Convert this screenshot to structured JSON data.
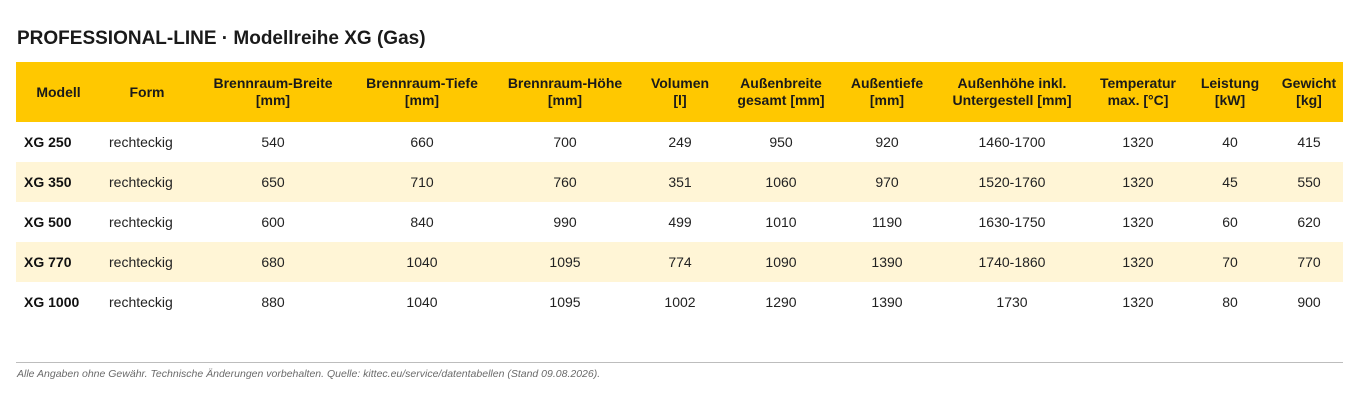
{
  "title": "PROFESSIONAL-LINE · Modellreihe XG (Gas)",
  "colors": {
    "header_bg": "#ffc800",
    "alt_row_bg": "#fff5d6",
    "rule": "#bdbdbd"
  },
  "table": {
    "headers": [
      {
        "line1": "Modell",
        "line2": ""
      },
      {
        "line1": "Form",
        "line2": ""
      },
      {
        "line1": "Brennraum-Breite",
        "line2": "[mm]"
      },
      {
        "line1": "Brennraum-Tiefe",
        "line2": "[mm]"
      },
      {
        "line1": "Brennraum-Höhe",
        "line2": "[mm]"
      },
      {
        "line1": "Volumen",
        "line2": "[l]"
      },
      {
        "line1": "Außenbreite",
        "line2": "gesamt [mm]"
      },
      {
        "line1": "Außentiefe",
        "line2": "[mm]"
      },
      {
        "line1": "Außenhöhe inkl.",
        "line2": "Untergestell [mm]"
      },
      {
        "line1": "Temperatur",
        "line2": "max. [°C]"
      },
      {
        "line1": "Leistung",
        "line2": "[kW]"
      },
      {
        "line1": "Gewicht",
        "line2": "[kg]"
      }
    ],
    "rows": [
      [
        "XG 250",
        "rechteckig",
        "540",
        "660",
        "700",
        "249",
        "950",
        "920",
        "1460-1700",
        "1320",
        "40",
        "415"
      ],
      [
        "XG 350",
        "rechteckig",
        "650",
        "710",
        "760",
        "351",
        "1060",
        "970",
        "1520-1760",
        "1320",
        "45",
        "550"
      ],
      [
        "XG 500",
        "rechteckig",
        "600",
        "840",
        "990",
        "499",
        "1010",
        "1190",
        "1630-1750",
        "1320",
        "60",
        "620"
      ],
      [
        "XG 770",
        "rechteckig",
        "680",
        "1040",
        "1095",
        "774",
        "1090",
        "1390",
        "1740-1860",
        "1320",
        "70",
        "770"
      ],
      [
        "XG 1000",
        "rechteckig",
        "880",
        "1040",
        "1095",
        "1002",
        "1290",
        "1390",
        "1730",
        "1320",
        "80",
        "900"
      ]
    ]
  },
  "footnote": "Alle Angaben ohne Gewähr. Technische Änderungen vorbehalten. Quelle: kittec.eu/service/datentabellen (Stand 09.08.2026)."
}
